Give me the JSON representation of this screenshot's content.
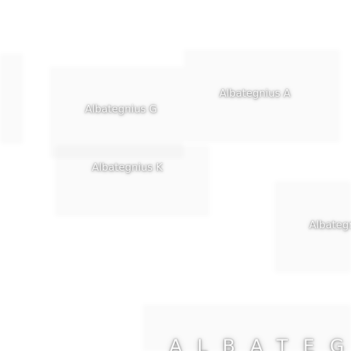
{
  "map": {
    "labels": {
      "albategnius_g": "Albategnius G",
      "albategnius_a": "Albategnius A",
      "albategnius_k": "Albategnius K",
      "albategnius_partial": "Albategnius",
      "albategnius_main": "ALBATEGNIUS"
    }
  }
}
